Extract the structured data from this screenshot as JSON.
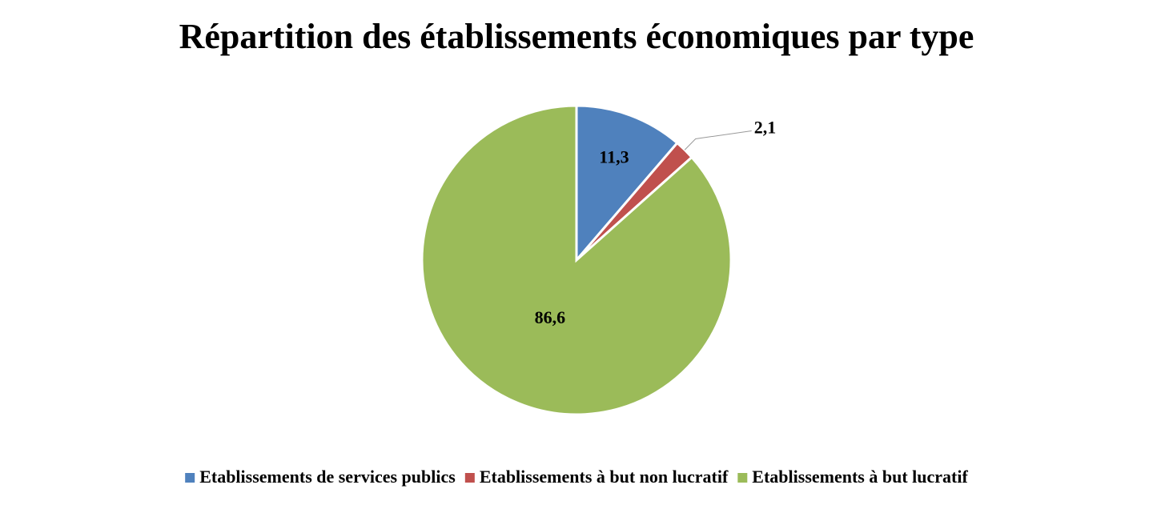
{
  "chart_data": {
    "type": "pie",
    "title": "Répartition des établissements économiques par type",
    "categories": [
      "Etablissements de services publics",
      "Etablissements à but non lucratif",
      "Etablissements à but lucratif"
    ],
    "values": [
      11.3,
      2.1,
      86.6
    ],
    "value_labels": [
      "11,3",
      "2,1",
      "86,6"
    ],
    "colors": [
      "#4f81bd",
      "#c0504d",
      "#9bbb59"
    ],
    "legend": "bottom"
  }
}
